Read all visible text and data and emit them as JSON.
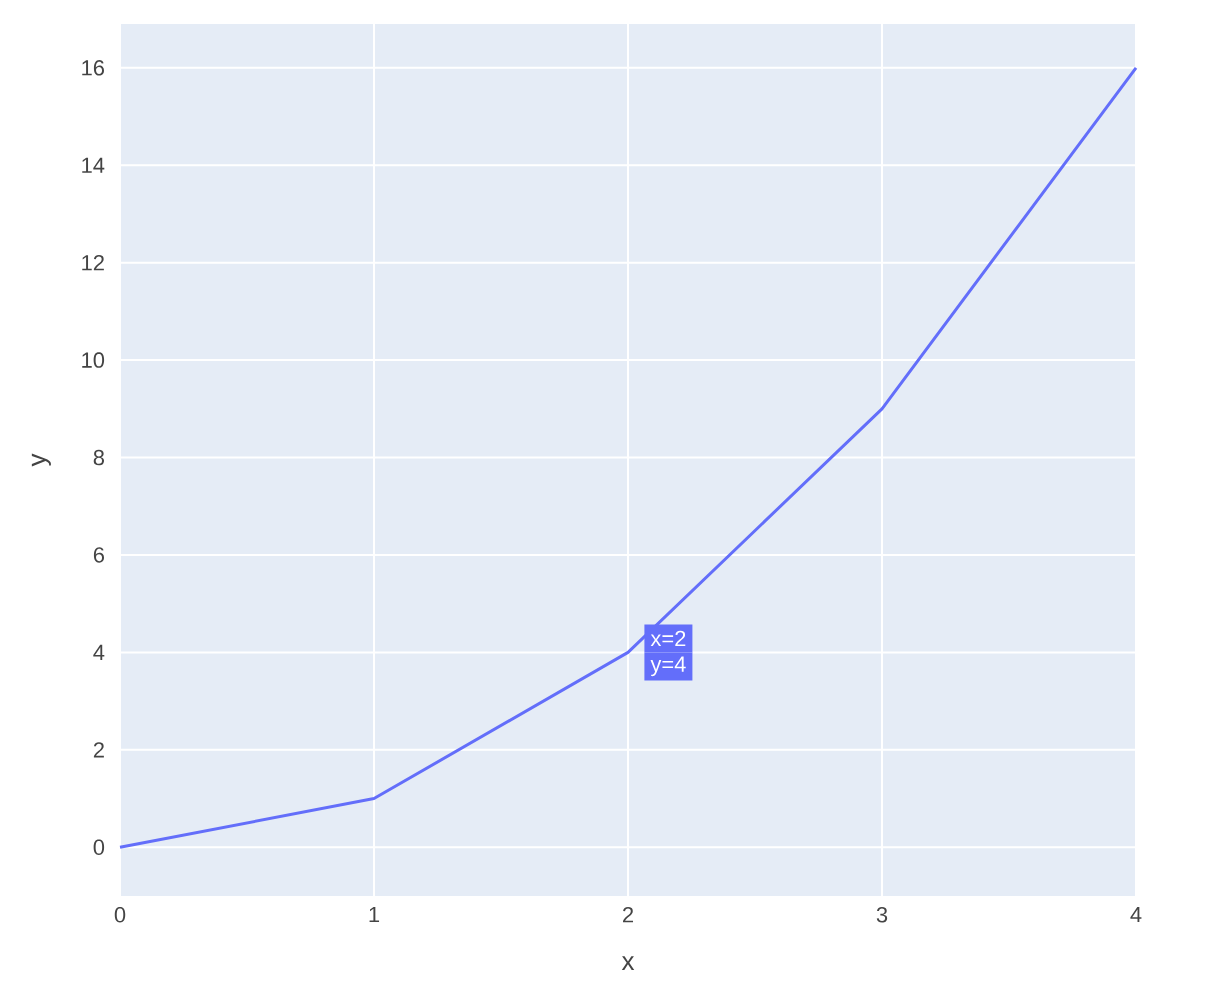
{
  "chart_data": {
    "type": "line",
    "xlabel": "x",
    "ylabel": "y",
    "x": [
      0,
      1,
      2,
      3,
      4
    ],
    "series": [
      {
        "color": "#636efa",
        "values": [
          0,
          1,
          4,
          9,
          16
        ]
      }
    ],
    "xlim": [
      0,
      4
    ],
    "ylim": [
      -1,
      16.9
    ],
    "xticks": [
      0,
      1,
      2,
      3,
      4
    ],
    "yticks": [
      0,
      2,
      4,
      6,
      8,
      10,
      12,
      14,
      16
    ],
    "grid": true,
    "line_style": "solid",
    "annotations": [
      {
        "text": "x=2",
        "x": 2,
        "y": 4
      },
      {
        "text": "y=4",
        "x": 2,
        "y": 4
      }
    ]
  }
}
